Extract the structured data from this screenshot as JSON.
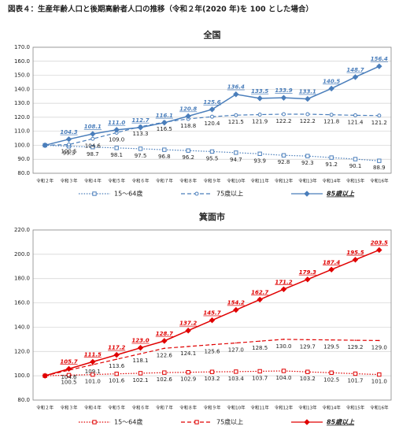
{
  "header": {
    "title": "図表４：生産年齢人口と後期高齢者人口の推移（令和２年(2020 年)を 100 とした場合）"
  },
  "chart_data": [
    {
      "type": "line",
      "title": "全国",
      "color": "#4a7ebb",
      "grid": true,
      "legend": "bottom",
      "categories": [
        "令和２年",
        "令和３年",
        "令和４年",
        "令和５年",
        "令和６年",
        "令和７年",
        "令和８年",
        "令和９年",
        "令和10年",
        "令和11年",
        "令和12年",
        "令和13年",
        "令和14年",
        "令和15年",
        "令和16年"
      ],
      "ylim": [
        80,
        170
      ],
      "yticks": [
        {
          "value": 80,
          "label": "80.0"
        },
        {
          "value": 90,
          "label": "90.0"
        },
        {
          "value": 100,
          "label": "100.0"
        },
        {
          "value": 110,
          "label": "110.0"
        },
        {
          "value": 120,
          "label": "120.0"
        },
        {
          "value": 130,
          "label": "130.0"
        },
        {
          "value": 140,
          "label": "140.0"
        },
        {
          "value": 150,
          "label": "150.0"
        },
        {
          "value": 160,
          "label": "160.0"
        },
        {
          "value": 170,
          "label": "170.0"
        }
      ],
      "series": [
        {
          "name": "15～64歳",
          "dash": "dotted",
          "marker": "square",
          "label_pos": "below",
          "values": [
            100,
            99.3,
            98.7,
            98.1,
            97.5,
            96.8,
            96.2,
            95.5,
            94.7,
            93.9,
            92.8,
            92.3,
            91.2,
            90.1,
            88.9
          ],
          "value_labels": [
            null,
            "99.3",
            "98.7",
            "98.1",
            "97.5",
            "96.8",
            "96.2",
            "95.5",
            "94.7",
            "93.9",
            "92.8",
            "92.3",
            "91.2",
            "90.1",
            "88.9"
          ]
        },
        {
          "name": "75歳以上",
          "dash": "dashed",
          "marker": "circle",
          "label_pos": "below",
          "values": [
            100,
            100.5,
            104.6,
            109.0,
            113.3,
            116.5,
            118.8,
            120.4,
            121.5,
            121.9,
            122.2,
            122.2,
            121.8,
            121.4,
            121.2
          ],
          "value_labels": [
            null,
            "100.5",
            "104.6",
            "109.0",
            "113.3",
            "116.5",
            "118.8",
            "120.4",
            "121.5",
            "121.9",
            "122.2",
            "122.2",
            "121.8",
            "121.4",
            "121.2"
          ]
        },
        {
          "name": "85歳以上",
          "dash": "solid",
          "marker": "diamond",
          "label_pos": "above",
          "values": [
            100,
            104.3,
            108.1,
            111.0,
            112.7,
            116.1,
            120.8,
            125.6,
            136.4,
            133.5,
            133.9,
            133.1,
            140.5,
            148.7,
            156.4
          ],
          "value_labels": [
            null,
            "104.3",
            "108.1",
            "111.0",
            "112.7",
            "116.1",
            "120.8",
            "125.6",
            "136.4",
            "133.5",
            "133.9",
            "133.1",
            "140.5",
            "148.7",
            "156.4"
          ]
        }
      ]
    },
    {
      "type": "line",
      "title": "箕面市",
      "color": "#e00000",
      "grid": true,
      "legend": "bottom",
      "categories": [
        "令和２年",
        "令和３年",
        "令和４年",
        "令和５年",
        "令和６年",
        "令和７年",
        "令和８年",
        "令和９年",
        "令和10年",
        "令和11年",
        "令和12年",
        "令和13年",
        "令和14年",
        "令和15年",
        "令和16年"
      ],
      "ylim": [
        80,
        220
      ],
      "yticks": [
        {
          "value": 80,
          "label": "80.0"
        },
        {
          "value": 100,
          "label": "100.0"
        },
        {
          "value": 120,
          "label": "120.0"
        },
        {
          "value": 140,
          "label": "140.0"
        },
        {
          "value": 160,
          "label": "160.0"
        },
        {
          "value": 180,
          "label": "180.0"
        },
        {
          "value": 200,
          "label": "200.0"
        },
        {
          "value": 220,
          "label": "220.0"
        }
      ],
      "series": [
        {
          "name": "15～64歳",
          "dash": "dotted",
          "marker": "square",
          "label_pos": "below",
          "values": [
            100,
            100.5,
            101.0,
            101.6,
            102.1,
            102.6,
            102.9,
            103.2,
            103.4,
            103.7,
            104.0,
            103.2,
            102.5,
            101.7,
            101.0
          ],
          "value_labels": [
            null,
            "100.5",
            "101.0",
            "101.6",
            "102.1",
            "102.6",
            "102.9",
            "103.2",
            "103.4",
            "103.7",
            "104.0",
            "103.2",
            "102.5",
            "101.7",
            "101.0"
          ]
        },
        {
          "name": "75歳以上",
          "dash": "dashed",
          "marker": "none",
          "label_pos": "below",
          "values": [
            100,
            104.6,
            109.1,
            113.6,
            118.1,
            122.6,
            124.1,
            125.6,
            127.0,
            128.5,
            130.0,
            129.7,
            129.5,
            129.2,
            129.0
          ],
          "value_labels": [
            null,
            "104.6",
            "109.1",
            "113.6",
            "118.1",
            "122.6",
            "124.1",
            "125.6",
            "127.0",
            "128.5",
            "130.0",
            "129.7",
            "129.5",
            "129.2",
            "129.0"
          ]
        },
        {
          "name": "85歳以上",
          "dash": "solid",
          "marker": "diamond",
          "label_pos": "above",
          "values": [
            100,
            105.7,
            111.5,
            117.2,
            123.0,
            128.7,
            137.2,
            145.7,
            154.2,
            162.7,
            171.2,
            179.3,
            187.4,
            195.5,
            203.5
          ],
          "value_labels": [
            null,
            "105.7",
            "111.5",
            "117.2",
            "123.0",
            "128.7",
            "137.2",
            "145.7",
            "154.2",
            "162.7",
            "171.2",
            "179.3",
            "187.4",
            "195.5",
            "203.5"
          ]
        }
      ]
    }
  ]
}
